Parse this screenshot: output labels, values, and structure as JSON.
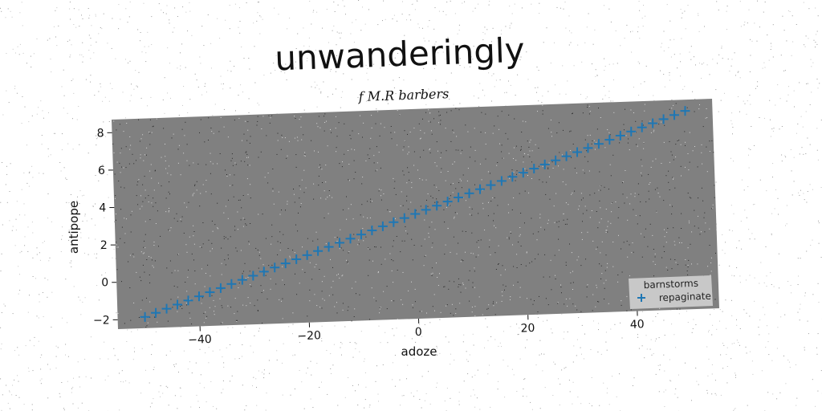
{
  "chart_data": {
    "type": "scatter",
    "title": "unwanderingly",
    "subtitle": "f M.R barbers",
    "xlabel": "adoze",
    "ylabel": "antipope",
    "xlim": [
      -55,
      55
    ],
    "ylim": [
      -2.5,
      8.7
    ],
    "xticks": [
      -40,
      -20,
      0,
      20,
      40
    ],
    "yticks": [
      -2,
      0,
      2,
      4,
      6,
      8
    ],
    "xtick_labels": [
      "−40",
      "−20",
      "0",
      "20",
      "40"
    ],
    "ytick_labels": [
      "−2",
      "0",
      "2",
      "4",
      "6",
      "8"
    ],
    "grid": false,
    "legend": {
      "title": "barnstorms",
      "placement": "lower-right"
    },
    "series": [
      {
        "name": "repaginate",
        "marker": "+",
        "color": "#1f77b4",
        "x": [
          -50,
          -48,
          -46,
          -44,
          -42,
          -40,
          -38,
          -36,
          -34,
          -32,
          -30,
          -28,
          -26,
          -24,
          -22,
          -20,
          -18,
          -16,
          -14,
          -12,
          -10,
          -8,
          -6,
          -4,
          -2,
          0,
          2,
          4,
          6,
          8,
          10,
          12,
          14,
          16,
          18,
          20,
          22,
          24,
          26,
          28,
          30,
          32,
          34,
          36,
          38,
          40,
          42,
          44,
          46,
          48,
          50
        ],
        "y": [
          -1.9,
          -1.7,
          -1.5,
          -1.3,
          -1.1,
          -0.9,
          -0.7,
          -0.5,
          -0.3,
          -0.1,
          0.1,
          0.3,
          0.5,
          0.7,
          0.9,
          1.1,
          1.3,
          1.5,
          1.7,
          1.9,
          2.1,
          2.3,
          2.5,
          2.7,
          2.9,
          3.1,
          3.3,
          3.5,
          3.7,
          3.9,
          4.1,
          4.3,
          4.5,
          4.7,
          4.9,
          5.1,
          5.3,
          5.5,
          5.7,
          5.9,
          6.1,
          6.3,
          6.5,
          6.7,
          6.9,
          7.1,
          7.3,
          7.5,
          7.7,
          7.9,
          8.1
        ]
      }
    ]
  },
  "colors": {
    "plot_background": "#808080",
    "series": "#1f77b4",
    "legend_background": "#c8c8c8"
  }
}
